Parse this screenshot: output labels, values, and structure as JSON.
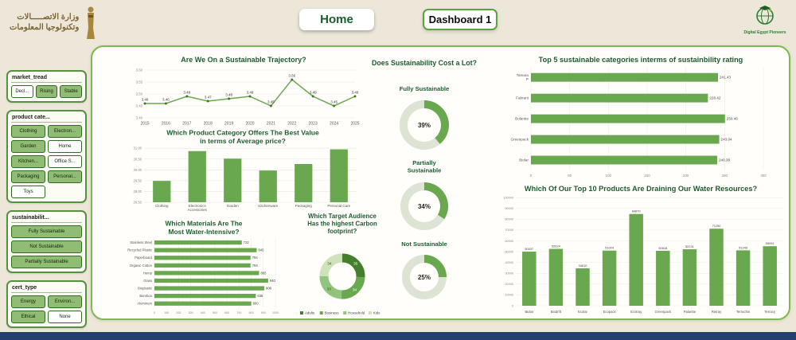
{
  "header": {
    "ministry": {
      "line1": "وزارة الاتصـــــالات",
      "line2": "وتكنولوجيا المعلومات"
    },
    "nav": {
      "home": "Home",
      "dashboard": "Dashboard 1"
    },
    "dep": {
      "label": "Digital Egypt Pioneers"
    }
  },
  "sidebar": {
    "groups": [
      {
        "title": "market_tread",
        "items": [
          {
            "label": "Decl...",
            "selected": false
          },
          {
            "label": "Rising",
            "selected": true
          },
          {
            "label": "Stable",
            "selected": true
          }
        ]
      },
      {
        "title": "product cate...",
        "items": [
          {
            "label": "Clothing",
            "selected": true
          },
          {
            "label": "Electron...",
            "selected": true
          },
          {
            "label": "Garden",
            "selected": true
          },
          {
            "label": "Home",
            "selected": false
          },
          {
            "label": "Kitchen...",
            "selected": true
          },
          {
            "label": "Office S...",
            "selected": false
          },
          {
            "label": "Packaging",
            "selected": true
          },
          {
            "label": "Personal...",
            "selected": true
          },
          {
            "label": "Toys",
            "selected": false
          }
        ]
      },
      {
        "title": "sustainabilit...",
        "items": [
          {
            "label": "Fully Sustainable",
            "selected": true
          },
          {
            "label": "Not Sustainable",
            "selected": true
          },
          {
            "label": "Partially Sustainable",
            "selected": true
          }
        ]
      },
      {
        "title": "cert_type",
        "items": [
          {
            "label": "Energy",
            "selected": true
          },
          {
            "label": "Environ...",
            "selected": true
          },
          {
            "label": "Ethical",
            "selected": true
          },
          {
            "label": "None",
            "selected": false
          }
        ]
      }
    ]
  },
  "colors": {
    "green": "#6aa84f",
    "dark_green": "#41761f",
    "title_green": "#1e5b2f",
    "beige": "#ece7d8",
    "panel": "#fffefb",
    "navy": "#23406f",
    "donut_rest": "#dde4d3",
    "donut_palette": [
      "#44802c",
      "#6aa84f",
      "#93c47d",
      "#cfe3ba"
    ]
  },
  "chart_data": [
    {
      "id": "trajectory",
      "type": "line",
      "title": "Are We On a Sustainable Trajectory?",
      "x": [
        2015,
        2016,
        2017,
        2018,
        2019,
        2020,
        2021,
        2022,
        2023,
        2024,
        2025
      ],
      "values": [
        3.46,
        3.46,
        3.49,
        3.47,
        3.48,
        3.49,
        3.45,
        3.56,
        3.49,
        3.45,
        3.49
      ],
      "ylim": [
        3.4,
        3.6
      ],
      "yticks": [
        3.4,
        3.45,
        3.5,
        3.55,
        3.6
      ],
      "legend_position": "none",
      "grid": true
    },
    {
      "id": "avg_price",
      "type": "bar",
      "title": "Which Product Category Offers The Best Value in terms of Average price?",
      "categories": [
        "Clothing",
        "Electronics Accessories",
        "Garden",
        "Kitchenware",
        "Packaging",
        "Personal Care"
      ],
      "values": [
        29.49,
        30.87,
        30.52,
        29.97,
        30.27,
        30.95
      ],
      "ylabel": "Average price",
      "ylim": [
        28.5,
        31.0
      ],
      "yticks": [
        28.5,
        29.0,
        29.5,
        30.0,
        30.5,
        31.0
      ],
      "grid": true
    },
    {
      "id": "materials",
      "type": "hbar",
      "title": "Which Materials Are The Most Water-Intensive?",
      "categories": [
        "Stainless Steel",
        "Recycled Plastic",
        "Paperboard",
        "Organic Cotton",
        "Hemp",
        "Glass",
        "Bioplastic",
        "Bamboo",
        "Aluminum"
      ],
      "values": [
        722,
        845,
        794,
        794,
        865,
        940,
        908,
        838,
        800
      ],
      "xlim": [
        0,
        1000
      ],
      "xticks": [
        0,
        100,
        200,
        300,
        400,
        500,
        600,
        700,
        800,
        900,
        1000
      ],
      "grid": true
    },
    {
      "id": "cost_gauges",
      "type": "donut",
      "title": "Does Sustainability Cost a Lot?",
      "gauges": [
        {
          "label": "Fully Sustainable",
          "pct": 39
        },
        {
          "label": "Partially Sustainable",
          "pct": 34
        },
        {
          "label": "Not Sustainable",
          "pct": 25
        }
      ]
    },
    {
      "id": "carbon",
      "type": "donut",
      "title": "Which Target Audience Has the highest Carbon footprint?",
      "segments": [
        {
          "label": "Adults",
          "value": 35
        },
        {
          "label": "Business",
          "value": 34
        },
        {
          "label": "Household",
          "value": 33
        },
        {
          "label": "Kids",
          "value": 34
        }
      ],
      "legend_position": "bottom"
    },
    {
      "id": "top5",
      "type": "hbar",
      "title": "Top 5 sustainable categories interms of sustainbility rating",
      "categories": [
        "Tamara P",
        "Fabrant",
        "Bolantte",
        "Greenpack",
        "Biolar"
      ],
      "values": [
        241.43,
        228.42,
        250.46,
        243.04,
        240.38
      ],
      "xlim": [
        0,
        300
      ],
      "xticks": [
        0,
        50,
        100,
        150,
        200,
        250,
        300
      ],
      "grid": true
    },
    {
      "id": "water",
      "type": "column",
      "title": "Which Of Our Top 10 Products Are Draining Our Water Resources?",
      "categories": [
        "Biolar",
        "Biodrift",
        "Ecolar",
        "Ecopack",
        "Ecotray",
        "Greenpack",
        "Palantte",
        "Retray",
        "Terrachin",
        "Terracy"
      ],
      "values": [
        50037,
        52624,
        34610,
        51004,
        84879,
        50818,
        52231,
        71250,
        51245,
        55091
      ],
      "ylim": [
        0,
        100000
      ],
      "yticks": [
        0,
        10000,
        20000,
        30000,
        40000,
        50000,
        60000,
        70000,
        80000,
        90000,
        100000
      ],
      "grid": true
    }
  ]
}
